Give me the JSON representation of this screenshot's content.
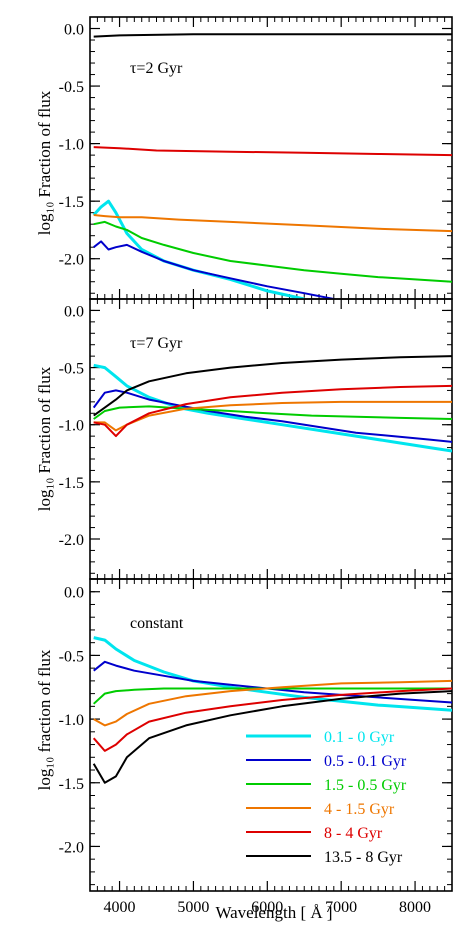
{
  "chart_data": [
    {
      "type": "line",
      "panel_label": "τ=2 Gyr",
      "ylabel": "log₁₀ Fraction of flux",
      "xlim": [
        3600,
        8500
      ],
      "ylim": [
        -2.35,
        0.1
      ],
      "yticks": [
        "0.0",
        "-0.5",
        "-1.0",
        "-1.5",
        "-2.0"
      ],
      "series": [
        {
          "color": "#00e5ee",
          "x": [
            3650,
            3750,
            3850,
            3950,
            4100,
            4300,
            4600,
            5000,
            5500,
            6000,
            6500
          ],
          "y": [
            -1.62,
            -1.55,
            -1.5,
            -1.6,
            -1.78,
            -1.92,
            -2.02,
            -2.1,
            -2.18,
            -2.28,
            -2.35
          ]
        },
        {
          "color": "#0000cc",
          "x": [
            3650,
            3750,
            3850,
            3950,
            4100,
            4300,
            4600,
            5000,
            5500,
            6000,
            6500,
            6900
          ],
          "y": [
            -1.9,
            -1.85,
            -1.92,
            -1.9,
            -1.88,
            -1.94,
            -2.02,
            -2.1,
            -2.17,
            -2.24,
            -2.3,
            -2.35
          ]
        },
        {
          "color": "#00cc00",
          "x": [
            3650,
            3800,
            3950,
            4100,
            4300,
            4600,
            5000,
            5500,
            6000,
            6500,
            7000,
            7500,
            8000,
            8500
          ],
          "y": [
            -1.7,
            -1.68,
            -1.72,
            -1.75,
            -1.82,
            -1.88,
            -1.95,
            -2.02,
            -2.06,
            -2.1,
            -2.13,
            -2.16,
            -2.18,
            -2.2
          ]
        },
        {
          "color": "#ee7600",
          "x": [
            3650,
            3800,
            4000,
            4300,
            4800,
            5500,
            6500,
            7500,
            8500
          ],
          "y": [
            -1.62,
            -1.63,
            -1.64,
            -1.64,
            -1.66,
            -1.68,
            -1.71,
            -1.74,
            -1.76
          ]
        },
        {
          "color": "#dd0000",
          "x": [
            3650,
            4000,
            4500,
            5500,
            6500,
            7500,
            8500
          ],
          "y": [
            -1.03,
            -1.04,
            -1.06,
            -1.07,
            -1.08,
            -1.09,
            -1.1
          ]
        },
        {
          "color": "#000000",
          "x": [
            3650,
            4000,
            5000,
            6000,
            7000,
            8500
          ],
          "y": [
            -0.07,
            -0.06,
            -0.05,
            -0.05,
            -0.05,
            -0.05
          ]
        }
      ]
    },
    {
      "type": "line",
      "panel_label": "τ=7 Gyr",
      "ylabel": "log₁₀ Fraction of flux",
      "xlim": [
        3600,
        8500
      ],
      "ylim": [
        -2.35,
        0.1
      ],
      "yticks": [
        "0.0",
        "-0.5",
        "-1.0",
        "-1.5",
        "-2.0"
      ],
      "series": [
        {
          "color": "#00e5ee",
          "x": [
            3650,
            3800,
            3950,
            4100,
            4400,
            4800,
            5200,
            5700,
            6200,
            6700,
            7200,
            7700,
            8200,
            8500
          ],
          "y": [
            -0.48,
            -0.5,
            -0.58,
            -0.66,
            -0.76,
            -0.85,
            -0.9,
            -0.95,
            -1.0,
            -1.05,
            -1.1,
            -1.15,
            -1.2,
            -1.23
          ]
        },
        {
          "color": "#0000cc",
          "x": [
            3650,
            3800,
            3950,
            4100,
            4400,
            4800,
            5200,
            5700,
            6200,
            6700,
            7200,
            7700,
            8200,
            8500
          ],
          "y": [
            -0.85,
            -0.72,
            -0.7,
            -0.72,
            -0.78,
            -0.83,
            -0.88,
            -0.93,
            -0.97,
            -1.02,
            -1.07,
            -1.1,
            -1.13,
            -1.15
          ]
        },
        {
          "color": "#00cc00",
          "x": [
            3650,
            3800,
            4000,
            4400,
            4900,
            5500,
            6000,
            6600,
            7200,
            7800,
            8500
          ],
          "y": [
            -0.95,
            -0.88,
            -0.85,
            -0.84,
            -0.86,
            -0.88,
            -0.9,
            -0.92,
            -0.93,
            -0.94,
            -0.95
          ]
        },
        {
          "color": "#ee7600",
          "x": [
            3650,
            3800,
            3950,
            4100,
            4400,
            4900,
            5500,
            6200,
            7000,
            7800,
            8500
          ],
          "y": [
            -0.98,
            -0.98,
            -1.05,
            -1.0,
            -0.92,
            -0.86,
            -0.83,
            -0.81,
            -0.8,
            -0.8,
            -0.8
          ]
        },
        {
          "color": "#dd0000",
          "x": [
            3650,
            3800,
            3950,
            4100,
            4400,
            4900,
            5500,
            6200,
            7000,
            7800,
            8500
          ],
          "y": [
            -0.98,
            -1.0,
            -1.1,
            -1.0,
            -0.9,
            -0.82,
            -0.76,
            -0.72,
            -0.69,
            -0.67,
            -0.66
          ]
        },
        {
          "color": "#000000",
          "x": [
            3650,
            3800,
            3950,
            4100,
            4400,
            4900,
            5500,
            6200,
            7000,
            7800,
            8500
          ],
          "y": [
            -0.92,
            -0.85,
            -0.78,
            -0.7,
            -0.62,
            -0.55,
            -0.5,
            -0.46,
            -0.43,
            -0.41,
            -0.4
          ]
        }
      ]
    },
    {
      "type": "line",
      "panel_label": "constant",
      "ylabel": "log₁₀ fraction of flux",
      "xlabel": "Wavelength [ Å ]",
      "xlim": [
        3600,
        8500
      ],
      "ylim": [
        -2.35,
        0.1
      ],
      "xticks": [
        4000,
        5000,
        6000,
        7000,
        8000
      ],
      "yticks": [
        "0.0",
        "-0.5",
        "-1.0",
        "-1.5",
        "-2.0"
      ],
      "legend_position": "bottom-right",
      "series": [
        {
          "name": "0.1 - 0 Gyr",
          "color": "#00e5ee",
          "x": [
            3650,
            3800,
            3950,
            4200,
            4600,
            5000,
            5500,
            6000,
            6500,
            7000,
            7500,
            8000,
            8500
          ],
          "y": [
            -0.36,
            -0.38,
            -0.45,
            -0.54,
            -0.63,
            -0.7,
            -0.75,
            -0.79,
            -0.83,
            -0.86,
            -0.89,
            -0.91,
            -0.93
          ]
        },
        {
          "name": "0.5 - 0.1 Gyr",
          "color": "#0000cc",
          "x": [
            3650,
            3800,
            3950,
            4200,
            4600,
            5000,
            5500,
            6000,
            6500,
            7000,
            7500,
            8000,
            8500
          ],
          "y": [
            -0.62,
            -0.55,
            -0.58,
            -0.62,
            -0.66,
            -0.7,
            -0.73,
            -0.76,
            -0.79,
            -0.81,
            -0.83,
            -0.85,
            -0.87
          ]
        },
        {
          "name": "1.5 - 0.5 Gyr",
          "color": "#00cc00",
          "x": [
            3650,
            3800,
            3950,
            4200,
            4600,
            5000,
            5500,
            6000,
            6500,
            7000,
            7500,
            8000,
            8500
          ],
          "y": [
            -0.88,
            -0.8,
            -0.78,
            -0.77,
            -0.76,
            -0.76,
            -0.76,
            -0.76,
            -0.76,
            -0.76,
            -0.76,
            -0.76,
            -0.76
          ]
        },
        {
          "name": "4 - 1.5 Gyr",
          "color": "#ee7600",
          "x": [
            3650,
            3800,
            3950,
            4100,
            4400,
            4900,
            5500,
            6200,
            7000,
            7800,
            8500
          ],
          "y": [
            -1.0,
            -1.05,
            -1.02,
            -0.96,
            -0.88,
            -0.82,
            -0.78,
            -0.75,
            -0.72,
            -0.71,
            -0.7
          ]
        },
        {
          "name": "8 - 4 Gyr",
          "color": "#dd0000",
          "x": [
            3650,
            3800,
            3950,
            4100,
            4400,
            4900,
            5500,
            6200,
            7000,
            7800,
            8500
          ],
          "y": [
            -1.15,
            -1.25,
            -1.2,
            -1.12,
            -1.02,
            -0.95,
            -0.9,
            -0.85,
            -0.81,
            -0.78,
            -0.76
          ]
        },
        {
          "name": "13.5 - 8 Gyr",
          "color": "#000000",
          "x": [
            3650,
            3800,
            3950,
            4100,
            4400,
            4900,
            5500,
            6200,
            7000,
            7800,
            8500
          ],
          "y": [
            -1.35,
            -1.5,
            -1.45,
            -1.3,
            -1.15,
            -1.05,
            -0.97,
            -0.9,
            -0.84,
            -0.8,
            -0.78
          ]
        }
      ]
    }
  ]
}
